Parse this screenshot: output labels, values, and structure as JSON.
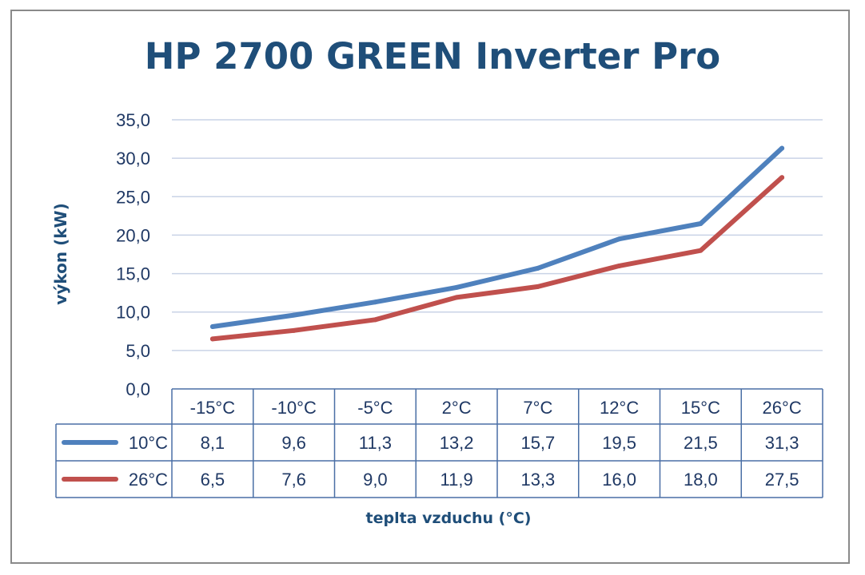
{
  "chart_data": {
    "type": "line",
    "title": "HP 2700 GREEN Inverter Pro",
    "xlabel": "teplta vzduchu (°C)",
    "ylabel": "výkon (kW)",
    "categories": [
      "-15°C",
      "-10°C",
      "-5°C",
      "2°C",
      "7°C",
      "12°C",
      "15°C",
      "26°C"
    ],
    "y_ticks": [
      "0,0",
      "5,0",
      "10,0",
      "15,0",
      "20,0",
      "25,0",
      "30,0",
      "35,0"
    ],
    "ylim": [
      0,
      35
    ],
    "grid": true,
    "legend": "data-table",
    "series": [
      {
        "name": "10°C",
        "values": [
          8.1,
          9.6,
          11.3,
          13.2,
          15.7,
          19.5,
          21.5,
          31.3
        ],
        "labels": [
          "8,1",
          "9,6",
          "11,3",
          "13,2",
          "15,7",
          "19,5",
          "21,5",
          "31,3"
        ],
        "color": "#4f81bd"
      },
      {
        "name": "26°C",
        "values": [
          6.5,
          7.6,
          9.0,
          11.9,
          13.3,
          16.0,
          18.0,
          27.5
        ],
        "labels": [
          "6,5",
          "7,6",
          "9,0",
          "11,9",
          "13,3",
          "16,0",
          "18,0",
          "27,5"
        ],
        "color": "#c0504d"
      }
    ]
  }
}
